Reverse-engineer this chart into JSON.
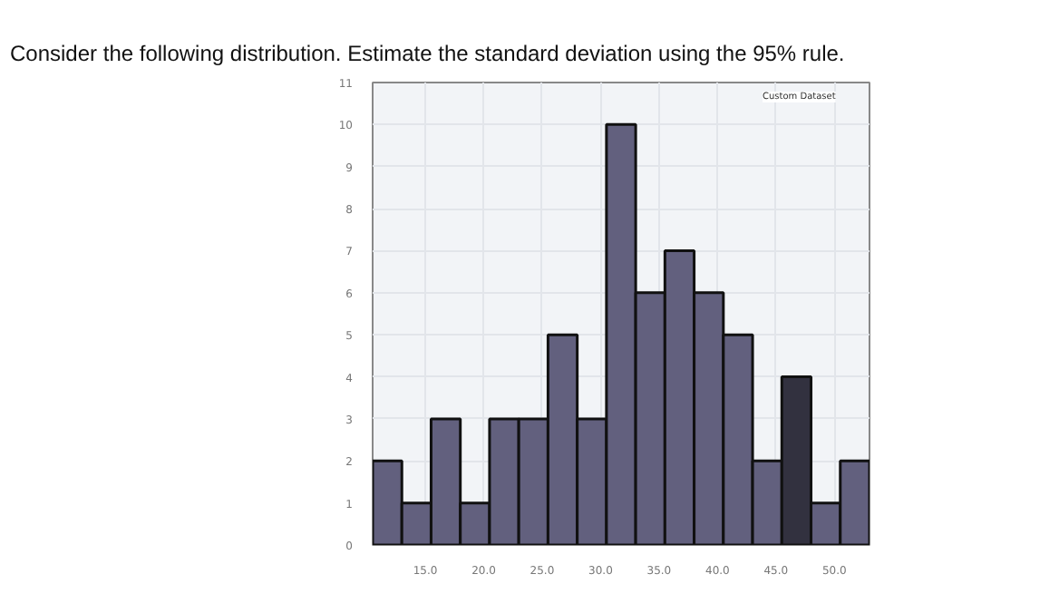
{
  "chart_data": {
    "type": "histogram",
    "title": "Consider the following distribution.  Estimate the standard deviation using the 95% rule.",
    "bins": [
      10.5,
      13,
      15.5,
      18,
      20.5,
      23,
      25.5,
      28,
      30.5,
      33,
      35.5,
      38,
      40.5,
      43,
      45.5,
      48,
      50.5,
      53
    ],
    "values": [
      2,
      1,
      3,
      1,
      3,
      3,
      5,
      3,
      10,
      6,
      7,
      6,
      5,
      2,
      4,
      1,
      2
    ],
    "colors": [
      "#62607e",
      "#62607e",
      "#62607e",
      "#62607e",
      "#62607e",
      "#62607e",
      "#62607e",
      "#62607e",
      "#62607e",
      "#62607e",
      "#62607e",
      "#62607e",
      "#62607e",
      "#62607e",
      "#32313f",
      "#62607e",
      "#62607e"
    ],
    "xlim": [
      10.5,
      53
    ],
    "xticks": [
      {
        "value": 15,
        "label": "15.0"
      },
      {
        "value": 20,
        "label": "20.0"
      },
      {
        "value": 25,
        "label": "25.0"
      },
      {
        "value": 30,
        "label": "30.0"
      },
      {
        "value": 35,
        "label": "35.0"
      },
      {
        "value": 40,
        "label": "40.0"
      },
      {
        "value": 45,
        "label": "45.0"
      },
      {
        "value": 50,
        "label": "50.0"
      }
    ],
    "ylim": [
      0,
      11
    ],
    "yticks": [
      0,
      1,
      2,
      3,
      4,
      5,
      6,
      7,
      8,
      9,
      10,
      11
    ],
    "grid": true,
    "annotations": [
      "Custom Dataset"
    ]
  }
}
